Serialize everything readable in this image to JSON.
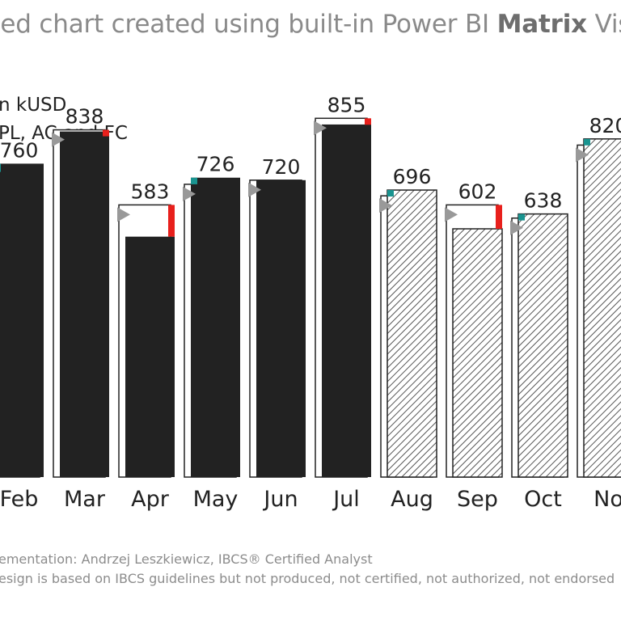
{
  "title": {
    "prefix": "led chart created using built-in Power BI ",
    "bold": "Matrix",
    "suffix": " Vis"
  },
  "subtitle": {
    "line1": "n kUSD",
    "line2": "PL, AC and FC"
  },
  "footer": {
    "line1": "ementation: Andrzej Leszkiewicz, IBCS® Certified Analyst",
    "line2": "esign is based on IBCS guidelines but not produced, not certified, not authorized, not endorsed"
  },
  "colors": {
    "actual": "#222222",
    "plan_outline": "#222222",
    "positive_variance": "#1a9490",
    "negative_variance": "#e8201c",
    "marker": "#999999",
    "forecast_hatch": "#555555"
  },
  "chart_data": {
    "type": "bar",
    "categories": [
      "Feb",
      "Mar",
      "Apr",
      "May",
      "Jun",
      "Jul",
      "Aug",
      "Sep",
      "Oct",
      "No"
    ],
    "values": [
      760,
      838,
      583,
      726,
      720,
      855,
      696,
      602,
      638,
      820
    ],
    "value_labels": [
      "760",
      "838",
      "583",
      "726",
      "720",
      "855",
      "696",
      "602",
      "638",
      "820"
    ],
    "series_type": [
      "AC",
      "AC",
      "AC",
      "AC",
      "AC",
      "AC",
      "FC",
      "FC",
      "FC",
      "FC"
    ],
    "plan": [
      740,
      842,
      660,
      710,
      720,
      870,
      682,
      660,
      628,
      805
    ],
    "ylim": [
      0,
      1000
    ],
    "grid": false,
    "legend": "none"
  }
}
